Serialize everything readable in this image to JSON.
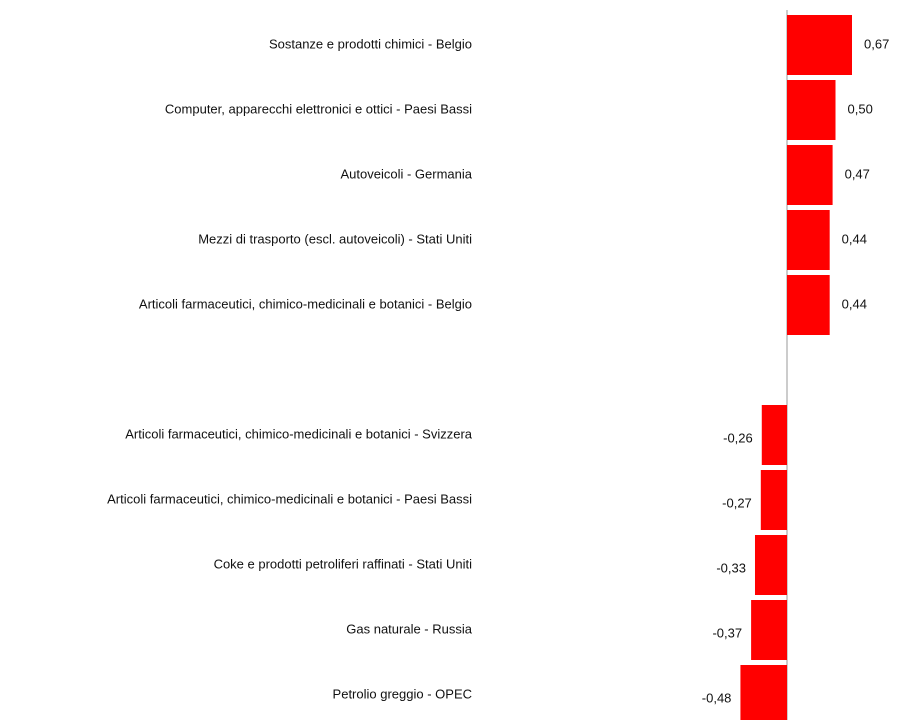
{
  "chart_data": {
    "type": "hbar",
    "categories": [
      "Sostanze e prodotti chimici - Belgio",
      "Computer, apparecchi elettronici e ottici - Paesi Bassi",
      "Autoveicoli - Germania",
      "Mezzi di trasporto (escl. autoveicoli) - Stati Uniti",
      "Articoli farmaceutici, chimico-medicinali e botanici - Belgio",
      null,
      "Articoli farmaceutici, chimico-medicinali e botanici - Svizzera",
      "Articoli farmaceutici, chimico-medicinali e botanici - Paesi Bassi",
      "Coke e prodotti petroliferi raffinati - Stati Uniti",
      "Gas naturale - Russia",
      "Petrolio greggio - OPEC"
    ],
    "values": [
      0.67,
      0.5,
      0.47,
      0.44,
      0.44,
      null,
      -0.26,
      -0.27,
      -0.33,
      -0.37,
      -0.48
    ],
    "value_labels": [
      "0,67",
      "0,50",
      "0,47",
      "0,44",
      "0,44",
      null,
      "-0,26",
      "-0,27",
      "-0,33",
      "-0,37",
      "-0,48"
    ],
    "color": "#ff0000"
  }
}
